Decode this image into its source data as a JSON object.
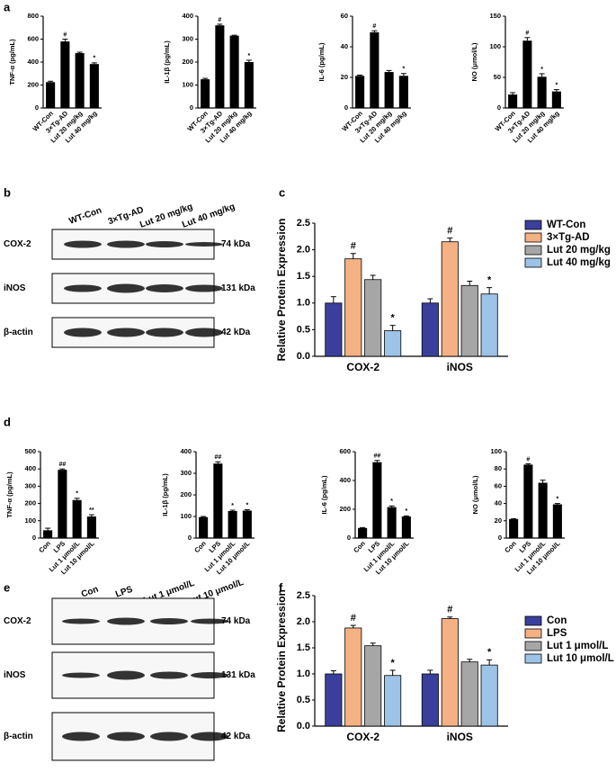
{
  "panel_labels": [
    "a",
    "b",
    "c",
    "d",
    "e",
    "f"
  ],
  "chart_data": [
    {
      "type": "bar",
      "y_label": "TNF-α (pg/mL)",
      "categories": [
        "WT-Con",
        "3×Tg-AD",
        "Lut 20 mg/kg",
        "Lut 40 mg/kg"
      ],
      "values": [
        225,
        580,
        478,
        383
      ],
      "errors": [
        8,
        20,
        8,
        10
      ],
      "annotations": [
        null,
        "#",
        null,
        "*"
      ],
      "color": "#000000",
      "ylim": [
        0,
        800
      ],
      "yticks": [
        0,
        200,
        400,
        600,
        800
      ]
    },
    {
      "type": "bar",
      "y_label": "IL-1β (pg/mL)",
      "categories": [
        "WT-Con",
        "3×Tg-AD",
        "Lut 20 mg/kg",
        "Lut 40 mg/kg"
      ],
      "values": [
        125,
        360,
        315,
        200
      ],
      "errors": [
        4,
        5,
        2,
        8
      ],
      "annotations": [
        null,
        "#",
        null,
        "*"
      ],
      "color": "#000000",
      "ylim": [
        0,
        400
      ],
      "yticks": [
        0,
        100,
        200,
        300,
        400
      ]
    },
    {
      "type": "bar",
      "y_label": "IL-6 (pg/mL)",
      "categories": [
        "WT-Con",
        "3×Tg-AD",
        "Lut 20 mg/kg",
        "Lut 40 mg/kg"
      ],
      "values": [
        21,
        49.5,
        23.5,
        21
      ],
      "errors": [
        0.5,
        1,
        1,
        1.5
      ],
      "annotations": [
        null,
        "#",
        null,
        "*"
      ],
      "color": "#000000",
      "ylim": [
        0,
        60
      ],
      "yticks": [
        0,
        20,
        40,
        60
      ]
    },
    {
      "type": "bar",
      "y_label": "NO (μmol/L)",
      "categories": [
        "WT-Con",
        "3×Tg-AD",
        "Lut 20 mg/kg",
        "Lut 40 mg/kg"
      ],
      "values": [
        22,
        110,
        51,
        27
      ],
      "errors": [
        3,
        5,
        5,
        3
      ],
      "annotations": [
        null,
        "#",
        "*",
        "*"
      ],
      "color": "#000000",
      "ylim": [
        0,
        150
      ],
      "yticks": [
        0,
        50,
        100,
        150
      ]
    },
    {
      "type": "bar",
      "y_label": "Relative Protein Expression",
      "categories": [
        "COX-2",
        "iNOS"
      ],
      "series": [
        {
          "name": "WT-Con",
          "color": "#3b3f9c",
          "values": [
            1.0,
            1.0
          ],
          "errors": [
            0.12,
            0.08
          ],
          "annotations": [
            null,
            null
          ]
        },
        {
          "name": "3×Tg-AD",
          "color": "#f4b183",
          "values": [
            1.83,
            2.15
          ],
          "errors": [
            0.1,
            0.07
          ],
          "annotations": [
            "#",
            "#"
          ]
        },
        {
          "name": "Lut 20 mg/kg",
          "color": "#a6a6a6",
          "values": [
            1.44,
            1.33
          ],
          "errors": [
            0.08,
            0.08
          ],
          "annotations": [
            null,
            null
          ]
        },
        {
          "name": "Lut 40 mg/kg",
          "color": "#9dc3e6",
          "values": [
            0.48,
            1.17
          ],
          "errors": [
            0.1,
            0.12
          ],
          "annotations": [
            "*",
            "*"
          ]
        }
      ],
      "ylim": [
        0,
        2.5
      ],
      "yticks": [
        {
          "value": 0,
          "label": "0.0"
        },
        0.5,
        {
          "value": 1,
          "label": "1.0"
        },
        1.5,
        {
          "value": 2,
          "label": "2.0"
        },
        2.5
      ]
    },
    {
      "type": "bar",
      "y_label": "TNF-α (pg/mL)",
      "categories": [
        "Con",
        "LPS",
        "Lut 1 μmol/L",
        "Lut 10 μmol/L"
      ],
      "values": [
        45,
        395,
        220,
        125
      ],
      "errors": [
        12,
        5,
        10,
        10
      ],
      "annotations": [
        null,
        "##",
        "*",
        "**"
      ],
      "color": "#000000",
      "ylim": [
        0,
        500
      ],
      "yticks": [
        0,
        100,
        200,
        300,
        400,
        500
      ]
    },
    {
      "type": "bar",
      "y_label": "IL-1β (pg/mL)",
      "categories": [
        "Con",
        "LPS",
        "Lut 1 μmol/L",
        "Lut 10 μmol/L"
      ],
      "values": [
        97,
        345,
        125,
        127
      ],
      "errors": [
        3,
        8,
        4,
        4
      ],
      "annotations": [
        null,
        "##",
        "*",
        "*"
      ],
      "color": "#000000",
      "ylim": [
        0,
        400
      ],
      "yticks": [
        0,
        100,
        200,
        300,
        400
      ]
    },
    {
      "type": "bar",
      "y_label": "IL-6 (pg/mL)",
      "categories": [
        "Con",
        "LPS",
        "Lut 1 μmol/L",
        "Lut 10 μmol/L"
      ],
      "values": [
        70,
        527,
        215,
        150
      ],
      "errors": [
        3,
        12,
        8,
        4
      ],
      "annotations": [
        null,
        "##",
        "*",
        "*"
      ],
      "color": "#000000",
      "ylim": [
        0,
        600
      ],
      "yticks": [
        0,
        200,
        400,
        600
      ]
    },
    {
      "type": "bar",
      "y_label": "NO (μmol/L)",
      "categories": [
        "Con",
        "LPS",
        "Lut 1 μmol/L",
        "Lut 10 μmol/L"
      ],
      "values": [
        22,
        85,
        64,
        39
      ],
      "errors": [
        0.5,
        1,
        3,
        1
      ],
      "annotations": [
        null,
        "#",
        null,
        "*"
      ],
      "color": "#000000",
      "ylim": [
        0,
        100
      ],
      "yticks": [
        0,
        20,
        40,
        60,
        80,
        100
      ]
    },
    {
      "type": "bar",
      "y_label": "Relative Protein Expression",
      "categories": [
        "COX-2",
        "iNOS"
      ],
      "series": [
        {
          "name": "Con",
          "color": "#3b3f9c",
          "values": [
            1.0,
            1.0
          ],
          "errors": [
            0.06,
            0.07
          ],
          "annotations": [
            null,
            null
          ]
        },
        {
          "name": "LPS",
          "color": "#f4b183",
          "values": [
            1.88,
            2.06
          ],
          "errors": [
            0.05,
            0.03
          ],
          "annotations": [
            "#",
            "#"
          ]
        },
        {
          "name": "Lut 1 μmol/L",
          "color": "#a6a6a6",
          "values": [
            1.54,
            1.23
          ],
          "errors": [
            0.05,
            0.05
          ],
          "annotations": [
            null,
            null
          ]
        },
        {
          "name": "Lut 10 μmol/L",
          "color": "#9dc3e6",
          "values": [
            0.97,
            1.17
          ],
          "errors": [
            0.1,
            0.1
          ],
          "annotations": [
            "*",
            "*"
          ]
        }
      ],
      "ylim": [
        0,
        2.5
      ],
      "yticks": [
        {
          "value": 0,
          "label": "0.0"
        },
        0.5,
        {
          "value": 1,
          "label": "1.0"
        },
        1.5,
        {
          "value": 2,
          "label": "2.0"
        },
        2.5
      ]
    }
  ],
  "blots": [
    {
      "lanes": [
        "WT-Con",
        "3×Tg-AD",
        "Lut 20 mg/kg",
        "Lut 40 mg/kg"
      ],
      "rows": [
        {
          "protein": "COX-2",
          "size": "74 kDa"
        },
        {
          "protein": "iNOS",
          "size": "131 kDa"
        },
        {
          "protein": "β-actin",
          "size": "42 kDa"
        }
      ]
    },
    {
      "lanes": [
        "Con",
        "LPS",
        "Lut 1 μmol/L",
        "Lut 10 μmol/L"
      ],
      "rows": [
        {
          "protein": "COX-2",
          "size": "74 kDa"
        },
        {
          "protein": "iNOS",
          "size": "131 kDa"
        },
        {
          "protein": "β-actin",
          "size": "42 kDa"
        }
      ]
    }
  ]
}
